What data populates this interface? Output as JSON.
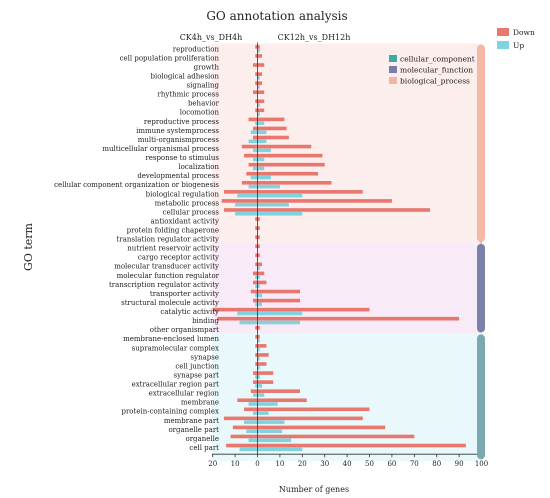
{
  "chart_data": {
    "type": "bar",
    "orientation": "horizontal",
    "title": "GO annotation analysis",
    "xlabel": "Number of genes",
    "ylabel": "GO term",
    "comparison_labels": [
      "CK4h_vs_DH4h",
      "CK12h_vs_DH12h"
    ],
    "x_ticks": [
      "20",
      "10",
      "0",
      "10",
      "20",
      "30",
      "40",
      "50",
      "60",
      "70",
      "80",
      "90",
      "100"
    ],
    "xlim": [
      -20,
      100
    ],
    "legend_regulation": [
      {
        "name": "Down",
        "color": "#e8776e"
      },
      {
        "name": "Up",
        "color": "#7fd2de"
      }
    ],
    "legend_categories": [
      {
        "name": "cellular_component",
        "color": "#3fa9a3"
      },
      {
        "name": "molecular_function",
        "color": "#7b7da8"
      },
      {
        "name": "biological_process",
        "color": "#f3b5a4"
      }
    ],
    "category_groups": [
      {
        "name": "biological_process",
        "start": 0,
        "end": 21,
        "color": "#f5b8a6",
        "band": "#fdeeee"
      },
      {
        "name": "molecular_function",
        "start": 22,
        "end": 31,
        "color": "#7b80a8",
        "band": "#f8eaf6"
      },
      {
        "name": "cellular_component",
        "start": 32,
        "end": 45,
        "color": "#7aaab0",
        "band": "#e9f8fb"
      }
    ],
    "categories": [
      "reproduction",
      "cell population proliferation",
      "growth",
      "biological adhesion",
      "signaling",
      "rhythmic process",
      "behavior",
      "locomotion",
      "reproductive process",
      "immune systemprocess",
      "multi-organismprocess",
      "multicellular organismal process",
      "response to stimulus",
      "localization",
      "developmental process",
      "cellular component organization or biogenesis",
      "biological regulation",
      "metabolic process",
      "cellular process",
      "antioxidant activity",
      "protein folding chaperone",
      "translation regulator activity",
      "nutrient reservoir activity",
      "cargo receptor activity",
      "molecular transducer activity",
      "molecular function regulator",
      "transcription regulator activity",
      "transporter activity",
      "structural molecule activity",
      "catalytic activity",
      "binding",
      "other organismpart",
      "membrane-enclosed lumen",
      "supramolecular complex",
      "synapse",
      "cell junction",
      "synapse part",
      "extracellular region part",
      "extracellular region",
      "membrane",
      "protein-containing complex",
      "membrane part",
      "organelle part",
      "organelle",
      "cell part"
    ],
    "series": [
      {
        "name": "CK4h_vs_DH4h Down",
        "regulation": "Down",
        "values": [
          -1,
          -1,
          -2,
          -1,
          -1,
          -2,
          -1,
          -1,
          -4,
          -2,
          -2,
          -7,
          -6,
          -4,
          -5,
          -7,
          -15,
          -16,
          -15,
          -1,
          -1,
          -1,
          -1,
          -1,
          -1,
          -2,
          -2,
          -3,
          -2,
          -20,
          -18,
          -1,
          -1,
          -1,
          -1,
          -1,
          -2,
          -2,
          -3,
          -9,
          -6,
          -15,
          -11,
          -12,
          -14
        ]
      },
      {
        "name": "CK4h_vs_DH4h Up",
        "regulation": "Up",
        "values": [
          0,
          0,
          0,
          0,
          0,
          0,
          0,
          0,
          -1,
          -3,
          -4,
          -2,
          -2,
          -2,
          -3,
          -4,
          -9,
          -10,
          -10,
          0,
          0,
          0,
          0,
          0,
          0,
          -1,
          -1,
          -1,
          -1,
          -9,
          -8,
          0,
          0,
          0,
          0,
          0,
          -1,
          -1,
          -2,
          -4,
          -2,
          -6,
          -5,
          -4,
          -8
        ]
      },
      {
        "name": "CK12h_vs_DH12h Down",
        "regulation": "Down",
        "values": [
          1,
          2,
          3,
          2,
          2,
          3,
          3,
          3,
          12,
          13,
          14,
          24,
          29,
          30,
          27,
          33,
          47,
          60,
          77,
          1,
          1,
          1,
          1,
          1,
          2,
          3,
          4,
          19,
          19,
          50,
          90,
          1,
          1,
          4,
          5,
          4,
          7,
          7,
          19,
          22,
          50,
          47,
          57,
          70,
          93
        ]
      },
      {
        "name": "CK12h_vs_DH12h Up",
        "regulation": "Up",
        "values": [
          1,
          0,
          0,
          1,
          1,
          0,
          1,
          1,
          3,
          4,
          4,
          6,
          3,
          3,
          6,
          10,
          20,
          14,
          20,
          0,
          0,
          0,
          0,
          0,
          1,
          1,
          1,
          2,
          2,
          20,
          19,
          0,
          1,
          1,
          1,
          1,
          1,
          2,
          3,
          9,
          5,
          12,
          11,
          15,
          20
        ]
      }
    ]
  }
}
